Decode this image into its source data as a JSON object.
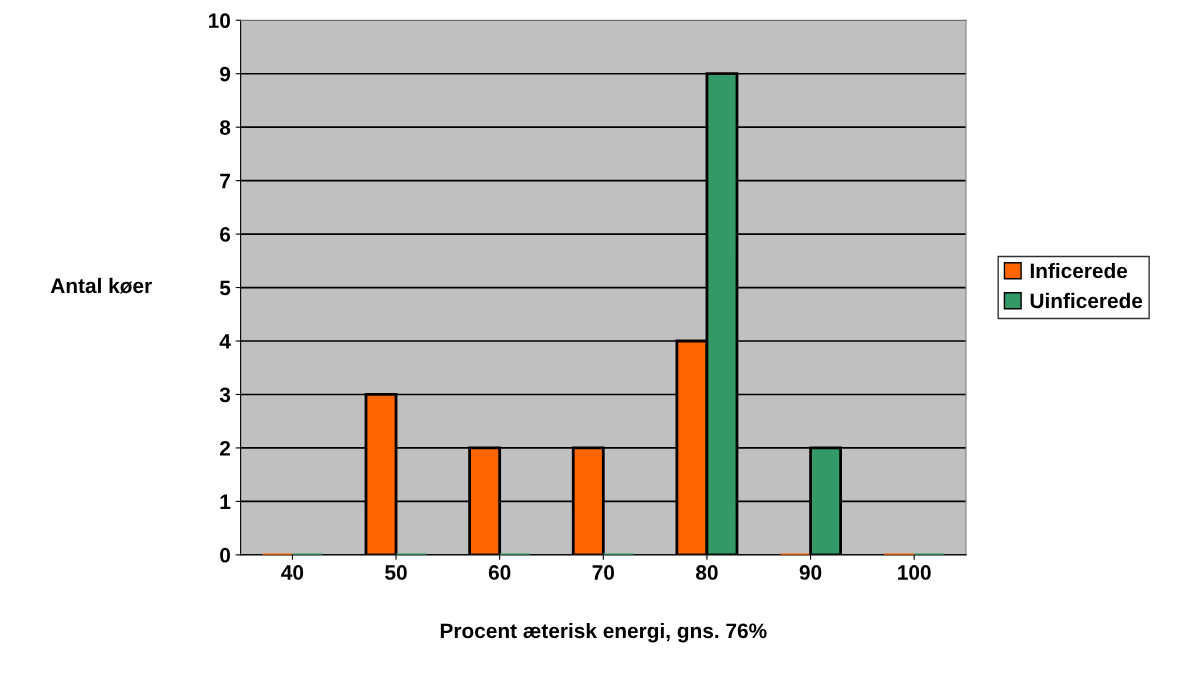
{
  "chart_data": {
    "type": "bar",
    "categories": [
      "40",
      "50",
      "60",
      "70",
      "80",
      "90",
      "100"
    ],
    "series": [
      {
        "name": "Inficerede",
        "color": "#ff6600",
        "values": [
          0,
          3,
          2,
          2,
          4,
          0,
          0
        ]
      },
      {
        "name": "Uinficerede",
        "color": "#339966",
        "values": [
          0,
          0,
          0,
          0,
          9,
          2,
          0
        ]
      }
    ],
    "xlabel": "Procent æterisk energi, gns. 76%",
    "ylabel": "Antal køer",
    "ylim": [
      0,
      10
    ],
    "yticks": [
      0,
      1,
      2,
      3,
      4,
      5,
      6,
      7,
      8,
      9,
      10
    ],
    "grid": "y",
    "legend": "right"
  }
}
